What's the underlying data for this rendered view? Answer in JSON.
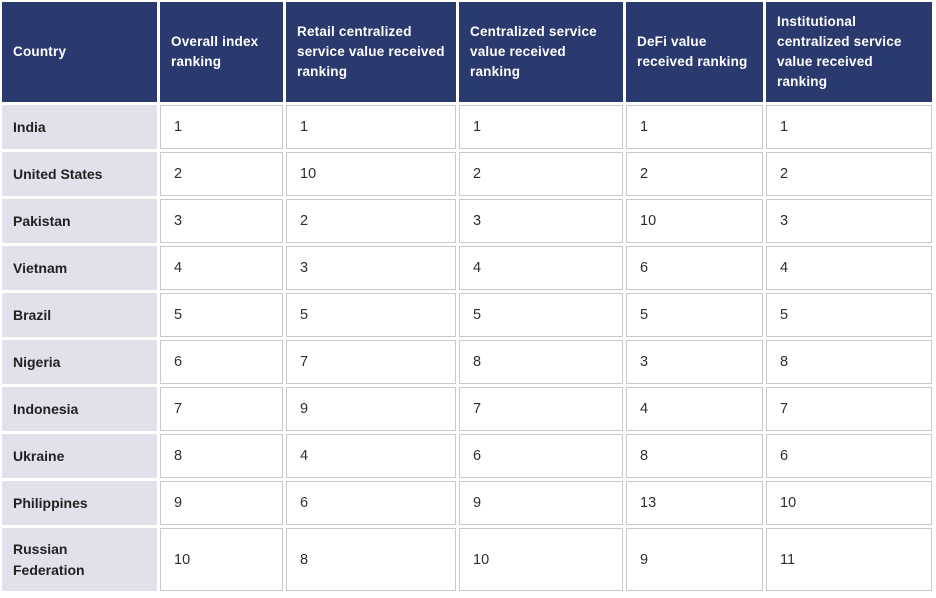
{
  "chart_data": {
    "type": "table",
    "columns": [
      "Country",
      "Overall index ranking",
      "Retail centralized service value received ranking",
      "Centralized service value received ranking",
      "DeFi value received ranking",
      "Institutional centralized service value received ranking"
    ],
    "rows": [
      [
        "India",
        "1",
        "1",
        "1",
        "1",
        "1"
      ],
      [
        "United States",
        "2",
        "10",
        "2",
        "2",
        "2"
      ],
      [
        "Pakistan",
        "3",
        "2",
        "3",
        "10",
        "3"
      ],
      [
        "Vietnam",
        "4",
        "3",
        "4",
        "6",
        "4"
      ],
      [
        "Brazil",
        "5",
        "5",
        "5",
        "5",
        "5"
      ],
      [
        "Nigeria",
        "6",
        "7",
        "8",
        "3",
        "8"
      ],
      [
        "Indonesia",
        "7",
        "9",
        "7",
        "4",
        "7"
      ],
      [
        "Ukraine",
        "8",
        "4",
        "6",
        "8",
        "6"
      ],
      [
        "Philippines",
        "9",
        "6",
        "9",
        "13",
        "10"
      ],
      [
        "Russian Federation",
        "10",
        "8",
        "10",
        "9",
        "11"
      ]
    ],
    "layout": {
      "legend": "none",
      "grid": "cell-borders",
      "header_position": "top"
    }
  },
  "colors": {
    "header_bg": "#2b3a6e",
    "header_text": "#ffffff",
    "country_bg": "#e0e1ea",
    "cell_border": "#c9c9c9",
    "body_text": "#2e2e2e",
    "country_text": "#222222",
    "page_bg": "#ffffff"
  }
}
